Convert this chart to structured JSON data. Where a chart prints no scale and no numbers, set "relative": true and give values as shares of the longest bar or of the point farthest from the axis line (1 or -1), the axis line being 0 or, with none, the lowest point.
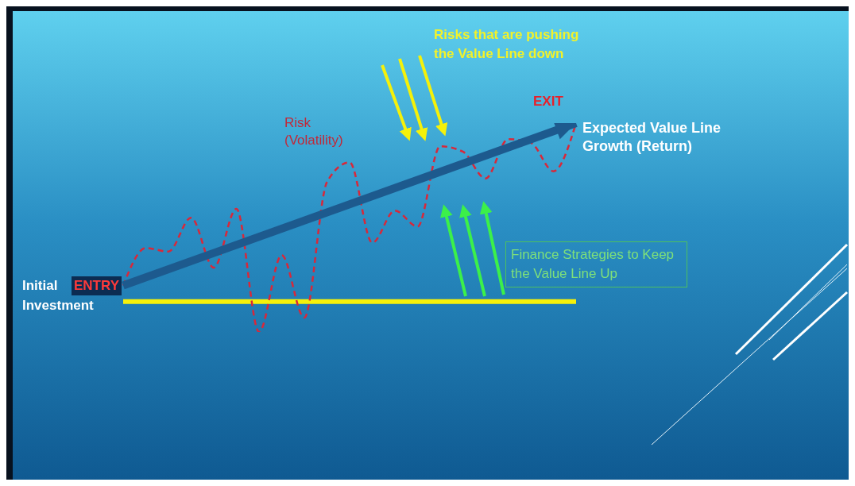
{
  "chart_data": {
    "type": "line",
    "relative": true,
    "categories": [
      null,
      null,
      null,
      null,
      null,
      null,
      null,
      null,
      null,
      null,
      null,
      null,
      null,
      null,
      null,
      null,
      null,
      null,
      null,
      null,
      null
    ],
    "series": [
      {
        "name": "Risk (Volatility)",
        "color": "#d8283a",
        "line_style": "dashed",
        "values": [
          0.09,
          0.3,
          0.28,
          0.47,
          0.19,
          0.52,
          -0.17,
          0.26,
          -0.09,
          0.67,
          0.78,
          0.33,
          0.51,
          0.42,
          0.87,
          0.84,
          0.69,
          0.91,
          0.89,
          0.73,
          1
        ]
      },
      {
        "name": "Expected Value Line Growth (Return)",
        "color": "#1d5a8e",
        "line_style": "solid",
        "values": [
          0.09,
          null,
          null,
          null,
          null,
          null,
          null,
          null,
          null,
          null,
          null,
          null,
          null,
          null,
          null,
          null,
          null,
          null,
          null,
          null,
          1
        ]
      }
    ],
    "annotations": [
      "Initial",
      "ENTRY",
      "Investment",
      "EXIT",
      "Risks that are pushing the Value Line down",
      "Finance Strategies to Keep the Value Line Up"
    ],
    "ref_lines": [
      {
        "axis": "y",
        "value": 0,
        "color": "#f5f10a"
      }
    ],
    "marker": "none"
  }
}
